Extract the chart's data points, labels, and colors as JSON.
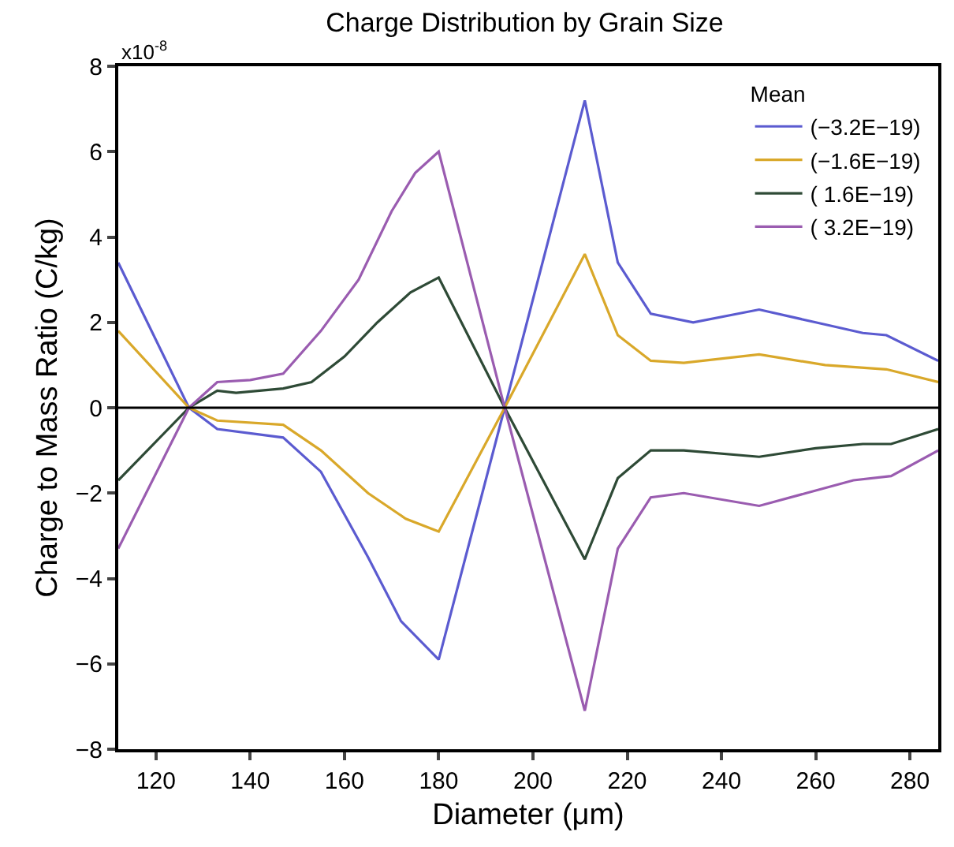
{
  "chart_data": {
    "type": "line",
    "title": "Charge Distribution by Grain Size",
    "xlabel": "Diameter (μm)",
    "ylabel": "Charge to Mass Ratio (C/kg)",
    "legend_title": "Mean",
    "annotations": [
      "x10$^{-8}$"
    ],
    "xlim": [
      112,
      286
    ],
    "xticks": [
      120,
      140,
      160,
      180,
      200,
      220,
      240,
      260,
      280
    ],
    "ylim": [
      -8,
      8
    ],
    "yticks": [
      -8,
      -6,
      -4,
      -2,
      0,
      2,
      4,
      6,
      8
    ],
    "legend": "top right",
    "marker": "none",
    "line_style": "solid",
    "ref_lines": [
      {
        "axis": "y",
        "value": 0,
        "color": "#000000"
      }
    ],
    "series": [
      {
        "name": "(−3.2E−19)",
        "color": "#5b5bd0",
        "x": [
          112,
          127,
          133,
          147,
          155,
          165,
          172,
          180,
          194,
          211,
          218,
          225,
          234,
          248,
          260,
          270,
          275,
          286
        ],
        "values": [
          3.4,
          0,
          -0.5,
          -0.7,
          -1.5,
          -3.5,
          -5,
          -5.9,
          0,
          7.2,
          3.4,
          2.2,
          2.0,
          2.3,
          2.0,
          1.75,
          1.7,
          1.1
        ]
      },
      {
        "name": "(−1.6E−19)",
        "color": "#d9a82a",
        "x": [
          112,
          127,
          133,
          147,
          155,
          165,
          173,
          180,
          194,
          211,
          218,
          225,
          232,
          248,
          262,
          275,
          286
        ],
        "values": [
          1.8,
          0,
          -0.3,
          -0.4,
          -1.0,
          -2,
          -2.6,
          -2.9,
          0,
          3.6,
          1.7,
          1.1,
          1.05,
          1.25,
          1.0,
          0.9,
          0.6
        ]
      },
      {
        "name": "( 1.6E−19)",
        "color": "#2e4a36",
        "x": [
          112,
          127,
          133,
          137,
          147,
          153,
          160,
          167,
          174,
          180,
          194,
          211,
          218,
          225,
          232,
          248,
          260,
          270,
          276,
          286
        ],
        "values": [
          -1.7,
          0,
          0.4,
          0.35,
          0.45,
          0.6,
          1.2,
          2,
          2.7,
          3.05,
          0,
          -3.55,
          -1.65,
          -1.0,
          -1.0,
          -1.15,
          -0.95,
          -0.85,
          -0.85,
          -0.5
        ]
      },
      {
        "name": "( 3.2E−19)",
        "color": "#9a5cb0",
        "x": [
          112,
          127,
          133,
          140,
          147,
          155,
          163,
          170,
          175,
          180,
          194,
          211,
          218,
          225,
          232,
          248,
          258,
          268,
          276,
          286
        ],
        "values": [
          -3.3,
          0,
          0.6,
          0.65,
          0.8,
          1.8,
          3,
          4.6,
          5.5,
          6.0,
          0,
          -7.1,
          -3.3,
          -2.1,
          -2.0,
          -2.3,
          -2.0,
          -1.7,
          -1.6,
          -1.0
        ]
      }
    ]
  }
}
